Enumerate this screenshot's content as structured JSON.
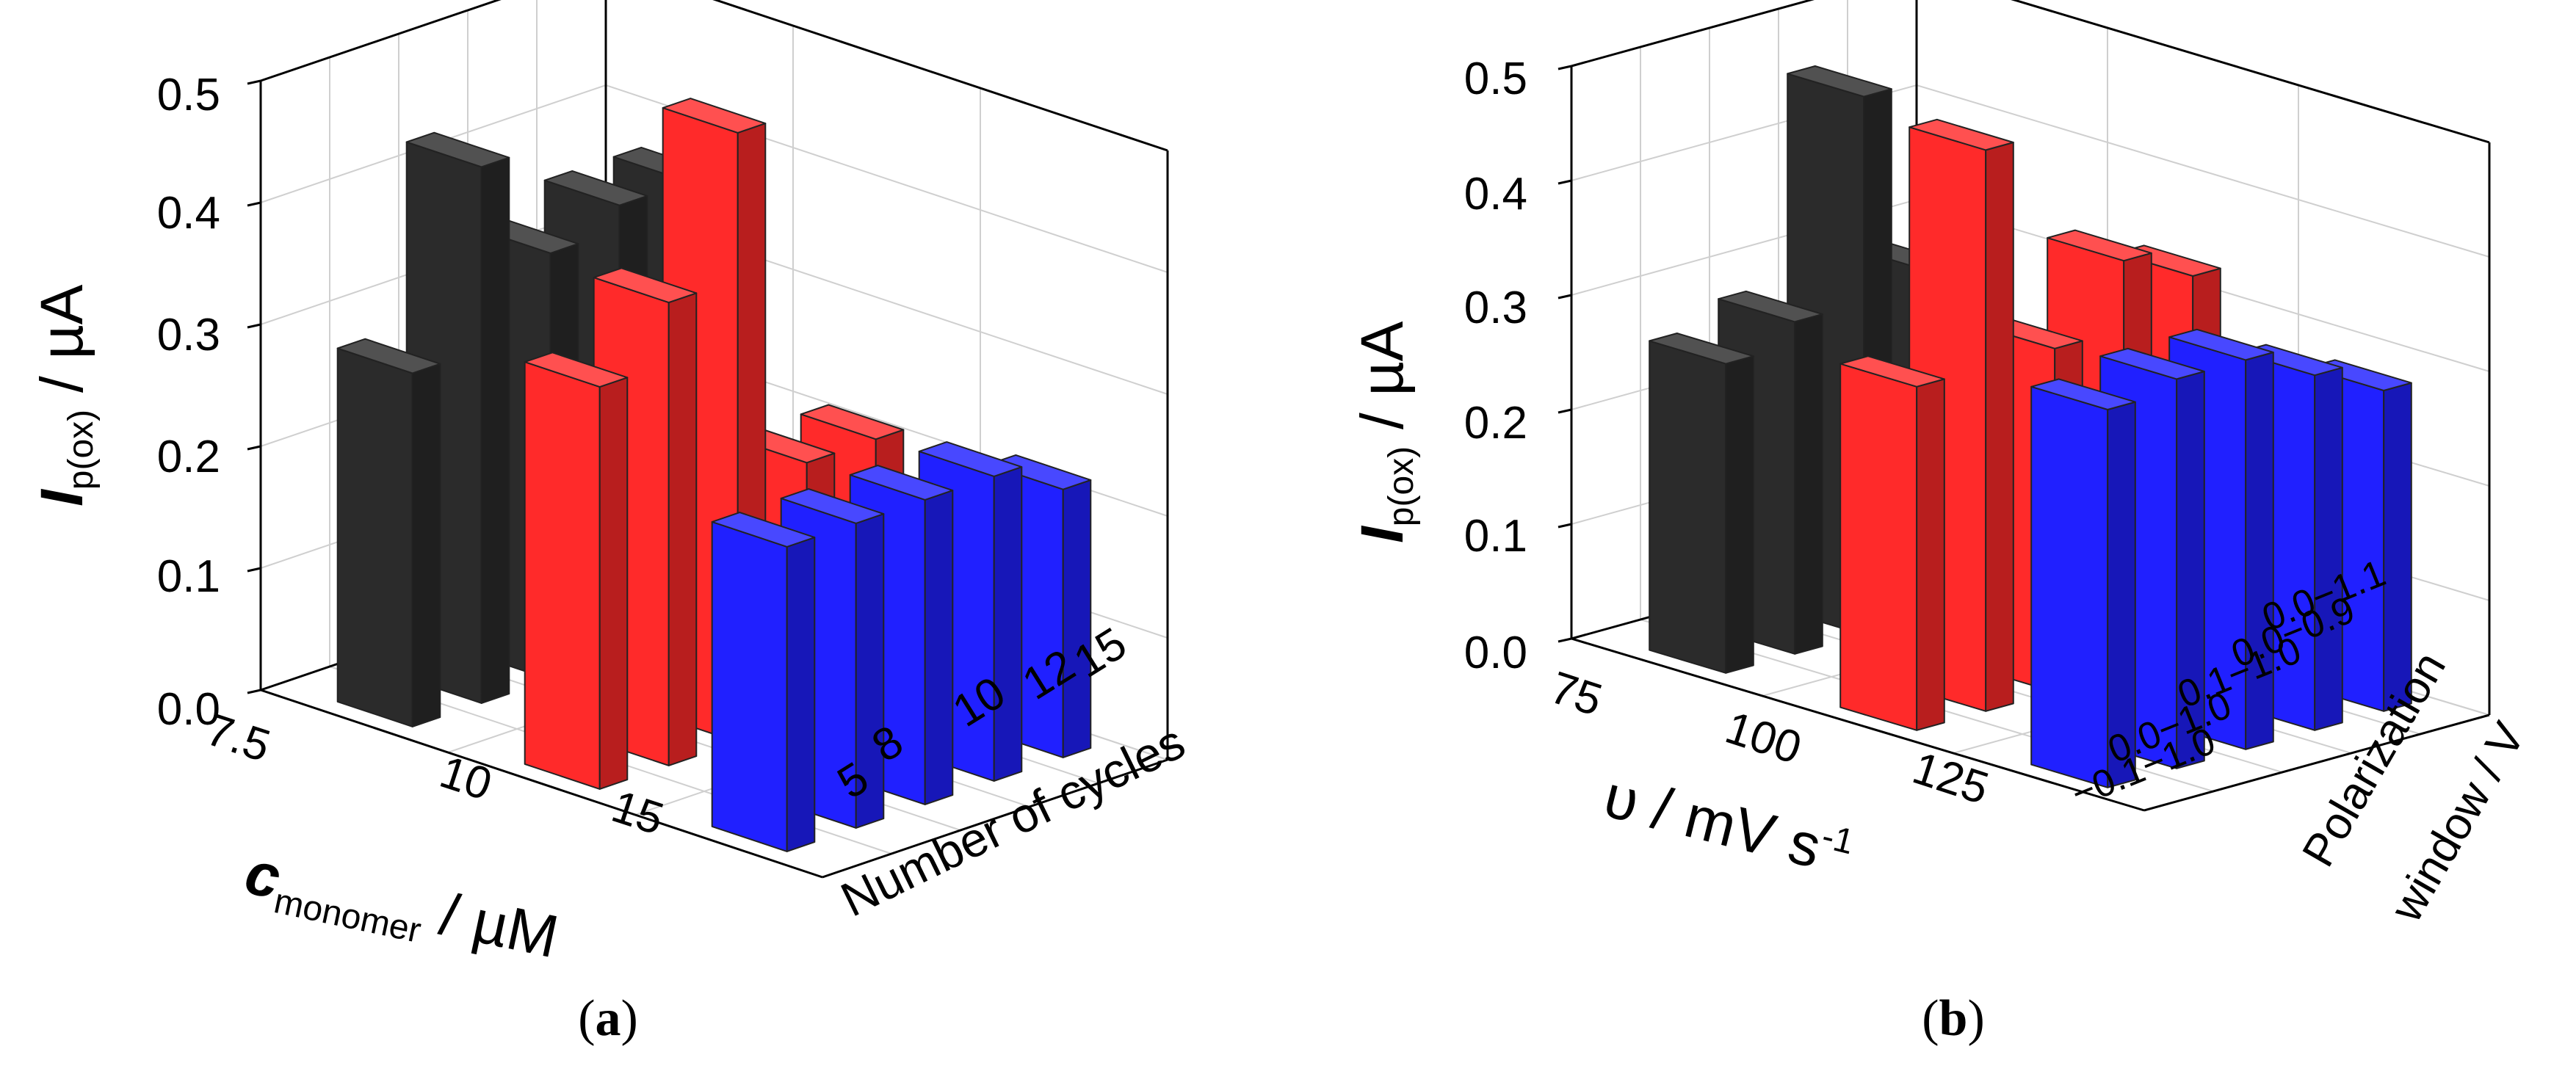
{
  "chart_data": [
    {
      "type": "bar3d",
      "panel": "(a)",
      "x_axis": {
        "label_main": "c",
        "label_sub": "monomer",
        "label_unit": " / µM",
        "categories": [
          "7.5",
          "10",
          "15"
        ]
      },
      "depth_axis": {
        "label": "Number of cycles",
        "categories": [
          "5",
          "8",
          "10",
          "12",
          "15"
        ]
      },
      "y_axis": {
        "label_main": "I",
        "label_sub": "p(ox)",
        "label_unit": " / µA",
        "ticks": [
          "0.0",
          "0.1",
          "0.2",
          "0.3",
          "0.4",
          "0.5"
        ],
        "range": [
          0,
          0.5
        ]
      },
      "series": [
        {
          "name": "7.5",
          "color": "#2b2b2b",
          "values": [
            0.29,
            0.44,
            0.35,
            0.37,
            0.37
          ]
        },
        {
          "name": "10",
          "color": "#ff2a2a",
          "values": [
            0.33,
            0.38,
            0.5,
            0.21,
            0.21
          ]
        },
        {
          "name": "15",
          "color": "#2020ff",
          "values": [
            0.25,
            0.25,
            0.25,
            0.25,
            0.22
          ]
        }
      ]
    },
    {
      "type": "bar3d",
      "panel": "(b)",
      "x_axis": {
        "label_main": "υ / mV s",
        "label_sup": "-1",
        "categories": [
          "75",
          "100",
          "125"
        ]
      },
      "depth_axis": {
        "label_line1": "Polarization",
        "label_line2": "window / V",
        "categories": [
          "−0.1−1.0",
          "0.0−1.0",
          "0.1−1.0",
          "0.0−0.9",
          "0.0−1.1"
        ]
      },
      "y_axis": {
        "label_main": "I",
        "label_sub": "p(ox)",
        "label_unit": " / µA",
        "ticks": [
          "0.0",
          "0.1",
          "0.2",
          "0.3",
          "0.4",
          "0.5"
        ],
        "range": [
          0,
          0.5
        ]
      },
      "series": [
        {
          "name": "75",
          "color": "#2b2b2b",
          "values": [
            0.27,
            0.29,
            0.47,
            0.3,
            null
          ]
        },
        {
          "name": "100",
          "color": "#ff2a2a",
          "values": [
            0.3,
            0.49,
            0.3,
            0.36,
            0.33
          ]
        },
        {
          "name": "125",
          "color": "#2020ff",
          "values": [
            0.33,
            0.34,
            0.34,
            0.31,
            0.28
          ]
        }
      ]
    }
  ],
  "captions": [
    "(a)",
    "(b)"
  ]
}
